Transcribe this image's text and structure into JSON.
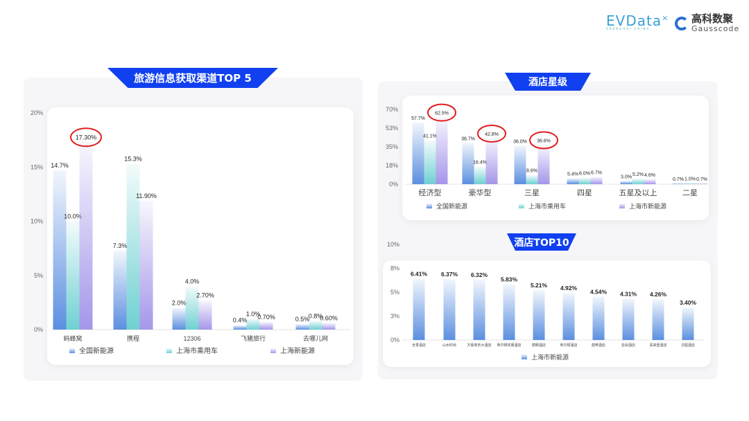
{
  "logos": {
    "evdata": "EVData",
    "evdata_sub": "SHANGHAI CHINA",
    "gauss_cn": "高科数聚",
    "gauss_en": "Gausscode"
  },
  "colors": {
    "全国新能源": "#5b8fe0",
    "上海市乘用车": "#6fd0d2",
    "上海新能源": "#a596ea",
    "banner": "#1040f0",
    "highlight": "#e01b1b"
  },
  "chart_data": [
    {
      "id": "channels",
      "type": "bar",
      "title": "旅游信息获取渠道TOP 5",
      "categories": [
        "蚂蜂窝",
        "携程",
        "12306",
        "飞猪旅行",
        "去哪儿网"
      ],
      "series": [
        {
          "name": "全国新能源",
          "values": [
            14.7,
            7.3,
            2.0,
            0.4,
            0.5
          ],
          "labels": [
            "14.7%",
            "7.3%",
            "2.0%",
            "0.4%",
            "0.5%"
          ]
        },
        {
          "name": "上海市乘用车",
          "values": [
            10.0,
            15.3,
            4.0,
            1.0,
            0.8
          ],
          "labels": [
            "10.0%",
            "15.3%",
            "4.0%",
            "1.0%",
            "0.8%"
          ]
        },
        {
          "name": "上海新能源",
          "values": [
            17.3,
            11.9,
            2.7,
            0.7,
            0.6
          ],
          "labels": [
            "17.30%",
            "11.90%",
            "2.70%",
            "0.70%",
            "0.60%"
          ]
        }
      ],
      "ylim": [
        0,
        20
      ],
      "yticks": [
        0,
        5,
        10,
        15,
        20
      ],
      "ytick_labels": [
        "0%",
        "5%",
        "10%",
        "15%",
        "20%"
      ],
      "highlighted": [
        "17.30%"
      ],
      "legend": "bottom"
    },
    {
      "id": "star",
      "type": "bar",
      "title": "酒店星级",
      "categories": [
        "经济型",
        "豪华型",
        "三星",
        "四星",
        "五星及以上",
        "二星"
      ],
      "series": [
        {
          "name": "全国新能源",
          "values": [
            57.7,
            38.7,
            36.0,
            5.4,
            3.0,
            0.7
          ],
          "labels": [
            "57.7%",
            "38.7%",
            "36.0%",
            "5.4%",
            "3.0%",
            "0.7%"
          ]
        },
        {
          "name": "上海市乘用车",
          "values": [
            41.1,
            16.4,
            8.6,
            6.0,
            5.2,
            1.0
          ],
          "labels": [
            "41.1%",
            "16.4%",
            "8.6%",
            "6.0%",
            "5.2%",
            "1.0%"
          ]
        },
        {
          "name": "上海市新能源",
          "values": [
            62.5,
            42.8,
            36.6,
            6.7,
            4.6,
            0.7
          ],
          "labels": [
            "62.5%",
            "42.8%",
            "36.6%",
            "6.7%",
            "4.6%",
            "0.7%"
          ]
        }
      ],
      "ylim": [
        0,
        70
      ],
      "yticks": [
        0,
        17.5,
        35,
        52.5,
        70
      ],
      "ytick_labels": [
        "0%",
        "18%",
        "35%",
        "53%",
        "70%"
      ],
      "highlighted": [
        "62.5%",
        "42.8%",
        "36.6%"
      ],
      "legend": "bottom"
    },
    {
      "id": "top10",
      "type": "bar",
      "title": "酒店TOP10",
      "categories": [
        "全季酒店",
        "山水时尚",
        "万豪商务大酒店",
        "希尔顿欢朋酒店",
        "丽枫酒店",
        "希尔顿酒店",
        "喆啡酒店",
        "亚朵酒店",
        "喜来登酒店",
        "汉庭酒店"
      ],
      "series": [
        {
          "name": "上海市新能源",
          "values": [
            6.41,
            6.37,
            6.32,
            5.83,
            5.21,
            4.92,
            4.54,
            4.31,
            4.26,
            3.4
          ],
          "labels": [
            "6.41%",
            "6.37%",
            "6.32%",
            "5.83%",
            "5.21%",
            "4.92%",
            "4.54%",
            "4.31%",
            "4.26%",
            "3.40%"
          ]
        }
      ],
      "ylim": [
        0,
        10
      ],
      "yticks": [
        0,
        2.5,
        5,
        7.5,
        10
      ],
      "ytick_labels": [
        "0%",
        "3%",
        "5%",
        "8%",
        "10%"
      ],
      "legend": "bottom"
    }
  ]
}
